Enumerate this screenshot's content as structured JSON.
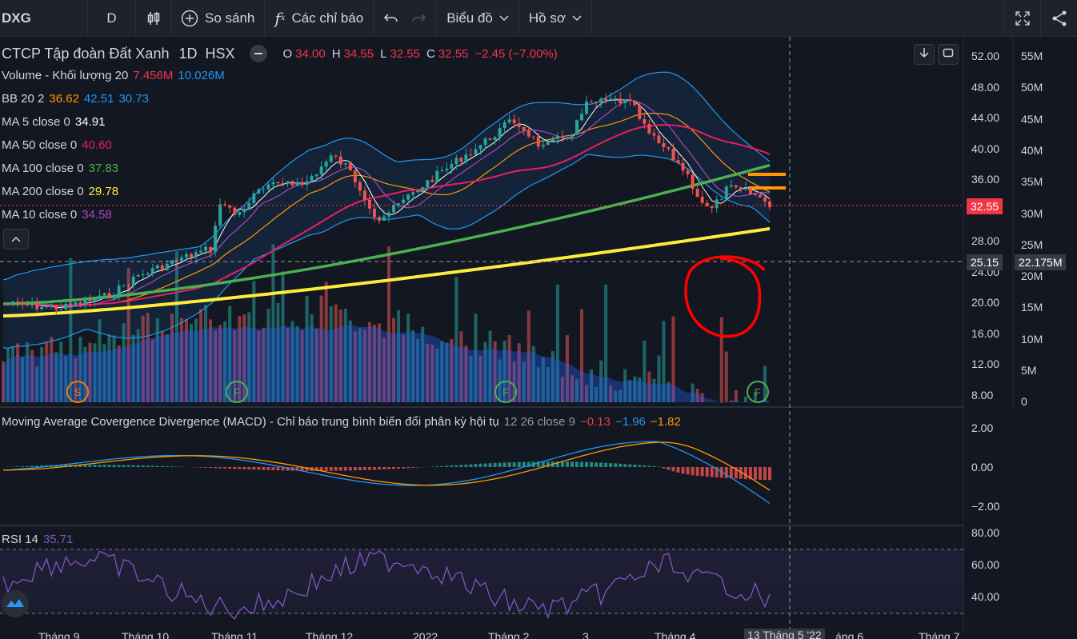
{
  "toolbar": {
    "symbol": "DXG",
    "interval": "D",
    "compare_label": "So sánh",
    "indicators_label": "Các chỉ báo",
    "chart_label": "Biểu đồ",
    "profile_label": "Hồ sơ"
  },
  "legend": {
    "name": "CTCP Tập đoàn Đất Xanh",
    "timeframe": "1D",
    "exchange": "HSX",
    "o_key": "O",
    "o": "34.00",
    "h_key": "H",
    "h": "34.55",
    "l_key": "L",
    "l": "32.55",
    "c_key": "C",
    "c": "32.55",
    "change": "−2.45 (−7.00%)",
    "volume_label": "Volume - Khối lượng 20",
    "volume_v1": "7.456M",
    "volume_v2": "10.026M",
    "bb_label": "BB 20 2",
    "bb_v1": "36.62",
    "bb_v2": "42.51",
    "bb_v3": "30.73",
    "ma5_label": "MA 5 close 0",
    "ma5": "34.91",
    "ma50_label": "MA 50 close 0",
    "ma50": "40.60",
    "ma100_label": "MA 100 close 0",
    "ma100": "37.83",
    "ma200_label": "MA 200 close 0",
    "ma200": "29.78",
    "ma10_label": "MA 10 close 0",
    "ma10": "34.58"
  },
  "price_axis": {
    "ticks": [
      "52.00",
      "48.00",
      "44.00",
      "40.00",
      "36.00",
      "32.00",
      "28.00",
      "24.00",
      "20.00",
      "16.00",
      "12.00",
      "8.00"
    ],
    "last_price": "32.55",
    "crosshair_price": "25.15"
  },
  "volume_axis": {
    "ticks": [
      "55M",
      "50M",
      "45M",
      "40M",
      "35M",
      "30M",
      "25M",
      "20M",
      "15M",
      "10M",
      "5M",
      "0"
    ],
    "crosshair_volume": "22.175M"
  },
  "macd": {
    "label": "Moving Average Covergence Divergence (MACD) - Chỉ báo trung bình biến đổi phân kỳ hội tụ",
    "params": "12 26 close 9",
    "v1": "−0.13",
    "v2": "−1.96",
    "v3": "−1.82",
    "ticks": [
      "2.00",
      "0.00",
      "−2.00"
    ]
  },
  "rsi": {
    "label": "RSI 14",
    "value": "35.71",
    "ticks": [
      "80.00",
      "60.00",
      "40.00"
    ]
  },
  "time_axis": [
    "Tháng 9",
    "Tháng 10",
    "Tháng 11",
    "Tháng 12",
    "2022",
    "Tháng 2",
    "3",
    "Tháng 4",
    "13 Tháng 5 '22",
    "áng 6",
    "Tháng 7"
  ],
  "markers": [
    "S",
    "F",
    "F",
    "F"
  ],
  "colors": {
    "background": "#131722",
    "up": "#26a69a",
    "down": "#ef5350",
    "ma200": "#ffeb3b",
    "ma100": "#4caf50",
    "ma50": "#e91e63",
    "annotation": "#ff0000"
  }
}
